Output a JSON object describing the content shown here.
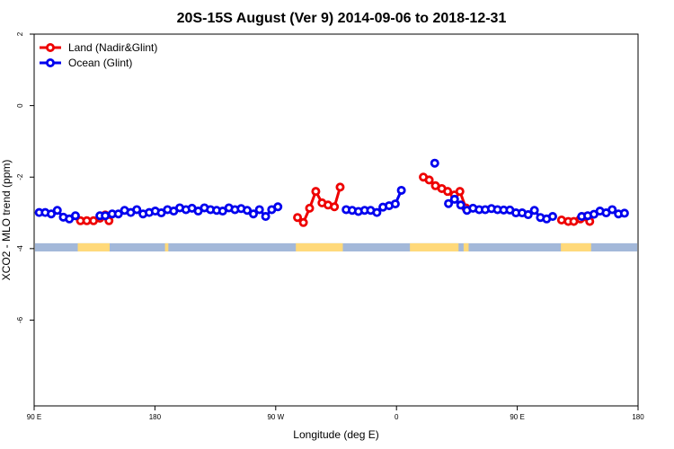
{
  "chart_data": {
    "type": "line",
    "title": "20S-15S August (Ver 9)   2014-09-06 to 2018-12-31",
    "xlabel": "Longitude (deg E)",
    "ylabel": "XCO2 - MLO trend (ppm)",
    "xlim": [
      90,
      450
    ],
    "ylim": [
      -8.4,
      2
    ],
    "x_ticks": [
      {
        "value": 90,
        "label": "90 E"
      },
      {
        "value": 162,
        "label": "180"
      },
      {
        "value": 234,
        "label": "90 W"
      },
      {
        "value": 306,
        "label": "0"
      },
      {
        "value": 378,
        "label": "90 E"
      },
      {
        "value": 450,
        "label": "180"
      }
    ],
    "y_ticks": [
      {
        "value": 2,
        "label": "2"
      },
      {
        "value": 0,
        "label": "0"
      },
      {
        "value": -2,
        "label": "-2"
      },
      {
        "value": -4,
        "label": "-4"
      },
      {
        "value": -6,
        "label": "-6"
      }
    ],
    "legend_position": "top-left",
    "grid": false,
    "series": [
      {
        "name": "Land (Nadir&Glint)",
        "color": "#ee0000",
        "segments": [
          [
            [
              117.6,
              -3.22
            ],
            [
              121.4,
              -3.22
            ],
            [
              125.4,
              -3.22
            ],
            [
              129.2,
              -3.15
            ],
            [
              132.4,
              -3.06
            ],
            [
              134.6,
              -3.22
            ]
          ],
          [
            [
              247.0,
              -3.13
            ],
            [
              250.5,
              -3.27
            ],
            [
              254.2,
              -2.87
            ],
            [
              257.9,
              -2.4
            ],
            [
              261.6,
              -2.72
            ],
            [
              265.2,
              -2.78
            ],
            [
              269.0,
              -2.83
            ],
            [
              272.4,
              -2.28
            ]
          ],
          [
            [
              322.0,
              -2.0
            ],
            [
              325.5,
              -2.08
            ],
            [
              329.2,
              -2.24
            ],
            [
              333.0,
              -2.32
            ],
            [
              336.5,
              -2.4
            ],
            [
              340.5,
              -2.5
            ],
            [
              343.8,
              -2.4
            ],
            [
              347.3,
              -2.86
            ]
          ],
          [
            [
              404.4,
              -3.2
            ],
            [
              408.4,
              -3.24
            ],
            [
              411.7,
              -3.24
            ],
            [
              415.6,
              -3.17
            ],
            [
              418.4,
              -3.11
            ],
            [
              421.2,
              -3.24
            ]
          ]
        ]
      },
      {
        "name": "Ocean (Glint)",
        "color": "#0000ee",
        "segments": [
          [
            [
              93.0,
              -2.99
            ],
            [
              96.6,
              -2.99
            ],
            [
              100.2,
              -3.03
            ],
            [
              103.8,
              -2.93
            ],
            [
              107.4,
              -3.12
            ],
            [
              111.0,
              -3.17
            ],
            [
              114.6,
              -3.08
            ]
          ],
          [
            [
              129.2,
              -3.08
            ],
            [
              132.4,
              -3.08
            ],
            [
              136.5,
              -3.03
            ],
            [
              140.2,
              -3.03
            ],
            [
              143.9,
              -2.93
            ],
            [
              147.6,
              -2.99
            ],
            [
              151.2,
              -2.91
            ],
            [
              154.9,
              -3.03
            ],
            [
              158.6,
              -2.99
            ],
            [
              162.2,
              -2.95
            ],
            [
              165.8,
              -3.0
            ],
            [
              169.5,
              -2.91
            ],
            [
              173.2,
              -2.95
            ],
            [
              176.8,
              -2.86
            ],
            [
              180.5,
              -2.91
            ],
            [
              184.1,
              -2.87
            ],
            [
              187.8,
              -2.95
            ],
            [
              191.5,
              -2.86
            ],
            [
              195.1,
              -2.91
            ],
            [
              198.8,
              -2.93
            ],
            [
              202.4,
              -2.95
            ],
            [
              206.1,
              -2.86
            ],
            [
              209.7,
              -2.91
            ],
            [
              213.4,
              -2.88
            ],
            [
              217.0,
              -2.93
            ],
            [
              220.7,
              -3.03
            ],
            [
              224.3,
              -2.91
            ],
            [
              228.0,
              -3.1
            ],
            [
              231.6,
              -2.91
            ],
            [
              235.3,
              -2.83
            ]
          ],
          [
            [
              276.0,
              -2.91
            ],
            [
              279.6,
              -2.93
            ],
            [
              283.3,
              -2.96
            ],
            [
              287.0,
              -2.93
            ],
            [
              290.6,
              -2.93
            ],
            [
              294.3,
              -2.99
            ],
            [
              297.9,
              -2.84
            ],
            [
              301.6,
              -2.8
            ],
            [
              305.3,
              -2.75
            ],
            [
              308.9,
              -2.37
            ]
          ],
          [
            [
              328.8,
              -1.61
            ]
          ],
          [
            [
              337.0,
              -2.74
            ],
            [
              340.6,
              -2.62
            ],
            [
              344.3,
              -2.78
            ],
            [
              348.0,
              -2.93
            ],
            [
              351.6,
              -2.87
            ],
            [
              355.3,
              -2.91
            ],
            [
              358.9,
              -2.91
            ],
            [
              362.6,
              -2.88
            ],
            [
              366.2,
              -2.91
            ],
            [
              369.9,
              -2.92
            ],
            [
              373.6,
              -2.92
            ],
            [
              377.2,
              -3.0
            ],
            [
              380.9,
              -3.0
            ],
            [
              384.5,
              -3.05
            ],
            [
              388.2,
              -2.93
            ],
            [
              391.8,
              -3.13
            ],
            [
              395.5,
              -3.17
            ],
            [
              399.1,
              -3.1
            ]
          ],
          [
            [
              416.4,
              -3.1
            ],
            [
              420.0,
              -3.08
            ],
            [
              423.7,
              -3.04
            ],
            [
              427.3,
              -2.95
            ],
            [
              431.0,
              -3.0
            ],
            [
              434.6,
              -2.91
            ],
            [
              438.3,
              -3.03
            ],
            [
              441.9,
              -3.01
            ]
          ]
        ]
      }
    ],
    "surface_strip": {
      "y_range": [
        -3.85,
        -4.08
      ],
      "ocean_color": "#a3b8d9",
      "land_color": "#ffd97a",
      "land_ranges": [
        [
          116.0,
          135.0
        ],
        [
          168.0,
          170.0
        ],
        [
          246.0,
          274.0
        ],
        [
          314.0,
          343.0
        ],
        [
          346.0,
          349.0
        ],
        [
          404.0,
          422.0
        ]
      ]
    }
  }
}
